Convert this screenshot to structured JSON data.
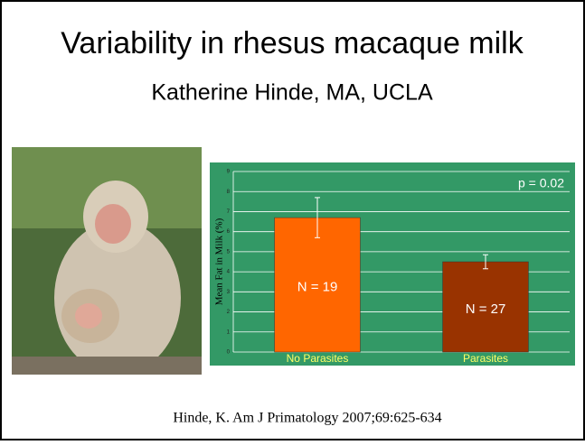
{
  "slide": {
    "title": "Variability in rhesus macaque milk",
    "subtitle": "Katherine Hinde, MA, UCLA",
    "citation": "Hinde, K. Am J Primatology 2007;69:625-634"
  },
  "chart_data": {
    "type": "bar",
    "y_label": "Mean Fat in Milk (%)",
    "categories": [
      "No Parasites",
      "Parasites"
    ],
    "values": [
      6.7,
      4.5
    ],
    "errors": [
      1.0,
      0.35
    ],
    "colors": [
      "#ff6600",
      "#993300"
    ],
    "value_annotations": [
      "N = 19",
      "N = 27"
    ],
    "annotation": "p = 0.02",
    "ylim": [
      0,
      9
    ],
    "yticks": [
      0,
      1,
      2,
      3,
      4,
      5,
      6,
      7,
      8,
      9
    ],
    "grid": true,
    "background": "#339966"
  }
}
